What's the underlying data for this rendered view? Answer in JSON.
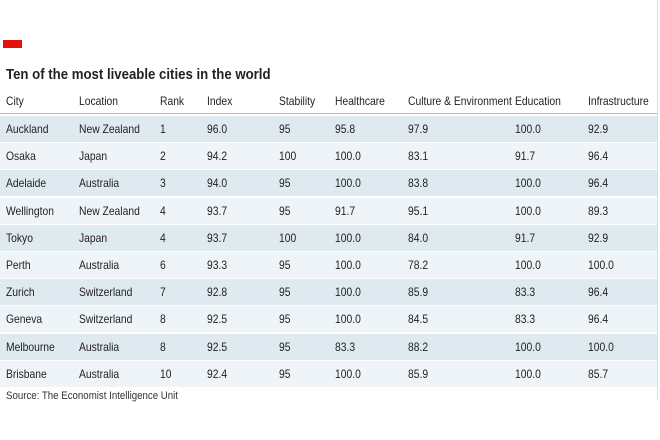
{
  "title": "Ten of the most liveable cities in the world",
  "table": {
    "header": [
      "City",
      "Location",
      "Rank",
      "Index",
      "Stability",
      "Healthcare",
      "Culture & Environment",
      "Education",
      "Infrastructure"
    ],
    "rows": [
      [
        "Auckland",
        "New Zealand",
        "1",
        "96.0",
        "95",
        "95.8",
        "97.9",
        "100.0",
        "92.9"
      ],
      [
        "Osaka",
        "Japan",
        "2",
        "94.2",
        "100",
        "100.0",
        "83.1",
        "91.7",
        "96.4"
      ],
      [
        "Adelaide",
        "Australia",
        "3",
        "94.0",
        "95",
        "100.0",
        "83.8",
        "100.0",
        "96.4"
      ],
      [
        "Wellington",
        "New Zealand",
        "4",
        "93.7",
        "95",
        "91.7",
        "95.1",
        "100.0",
        "89.3"
      ],
      [
        "Tokyo",
        "Japan",
        "4",
        "93.7",
        "100",
        "100.0",
        "84.0",
        "91.7",
        "92.9"
      ],
      [
        "Perth",
        "Australia",
        "6",
        "93.3",
        "95",
        "100.0",
        "78.2",
        "100.0",
        "100.0"
      ],
      [
        "Zurich",
        "Switzerland",
        "7",
        "92.8",
        "95",
        "100.0",
        "85.9",
        "83.3",
        "96.4"
      ],
      [
        "Geneva",
        "Switzerland",
        "8",
        "92.5",
        "95",
        "100.0",
        "84.5",
        "83.3",
        "96.4"
      ],
      [
        "Melbourne",
        "Australia",
        "8",
        "92.5",
        "95",
        "83.3",
        "88.2",
        "100.0",
        "100.0"
      ],
      [
        "Brisbane",
        "Australia",
        "10",
        "92.4",
        "95",
        "100.0",
        "85.9",
        "100.0",
        "85.7"
      ]
    ]
  },
  "source": "Source: The Economist Intelligence Unit"
}
